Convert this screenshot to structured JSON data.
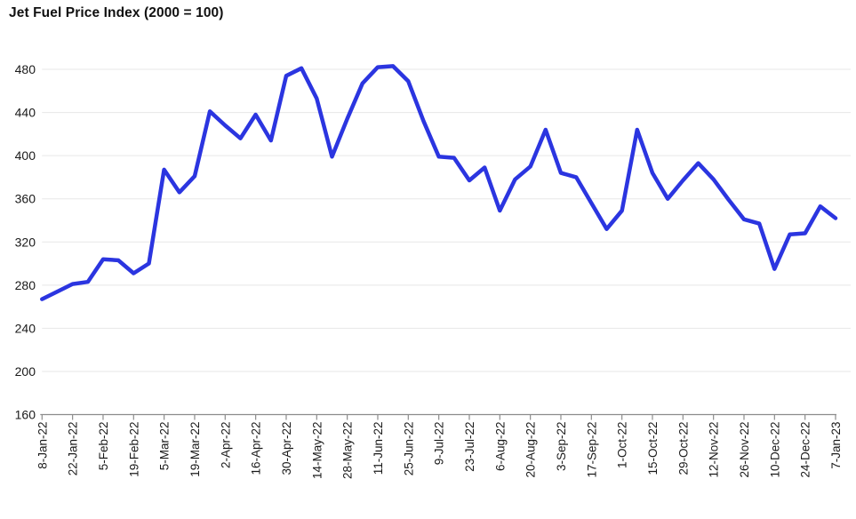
{
  "title": "Jet Fuel Price Index (2000 = 100)",
  "colors": {
    "line": "#2B35E0",
    "grid": "#e7e7e7",
    "axis": "#8c8c8c",
    "tick_label": "#1a1a1a",
    "title": "#111111",
    "background": "#ffffff"
  },
  "chart_data": {
    "type": "line",
    "title": "Jet Fuel Price Index (2000 = 100)",
    "xlabel": "",
    "ylabel": "",
    "ylim": [
      160,
      480
    ],
    "yticks": [
      160,
      200,
      240,
      280,
      320,
      360,
      400,
      440,
      480
    ],
    "grid": "horizontal gridlines on",
    "legend": "none",
    "x_tick_label_rotation": -90,
    "x_labeled_every": 2,
    "x": [
      "8-Jan-22",
      "15-Jan-22",
      "22-Jan-22",
      "29-Jan-22",
      "5-Feb-22",
      "12-Feb-22",
      "19-Feb-22",
      "26-Feb-22",
      "5-Mar-22",
      "12-Mar-22",
      "19-Mar-22",
      "26-Mar-22",
      "2-Apr-22",
      "9-Apr-22",
      "16-Apr-22",
      "23-Apr-22",
      "30-Apr-22",
      "7-May-22",
      "14-May-22",
      "21-May-22",
      "28-May-22",
      "4-Jun-22",
      "11-Jun-22",
      "18-Jun-22",
      "25-Jun-22",
      "2-Jul-22",
      "9-Jul-22",
      "16-Jul-22",
      "23-Jul-22",
      "30-Jul-22",
      "6-Aug-22",
      "13-Aug-22",
      "20-Aug-22",
      "27-Aug-22",
      "3-Sep-22",
      "10-Sep-22",
      "17-Sep-22",
      "24-Sep-22",
      "1-Oct-22",
      "8-Oct-22",
      "15-Oct-22",
      "22-Oct-22",
      "29-Oct-22",
      "5-Nov-22",
      "12-Nov-22",
      "19-Nov-22",
      "26-Nov-22",
      "3-Dec-22",
      "10-Dec-22",
      "17-Dec-22",
      "24-Dec-22",
      "31-Dec-22",
      "7-Jan-23"
    ],
    "series": [
      {
        "name": "Jet Fuel Price Index (2000 = 100)",
        "color": "#2B35E0",
        "values": [
          267,
          274,
          281,
          283,
          304,
          303,
          291,
          300,
          387,
          366,
          381,
          441,
          428,
          416,
          438,
          414,
          474,
          481,
          453,
          399,
          434,
          467,
          482,
          483,
          469,
          432,
          399,
          398,
          377,
          389,
          349,
          378,
          390,
          424,
          384,
          380,
          356,
          332,
          349,
          424,
          384,
          360,
          377,
          393,
          378,
          359,
          341,
          337,
          295,
          327,
          328,
          353,
          342
        ]
      }
    ]
  }
}
